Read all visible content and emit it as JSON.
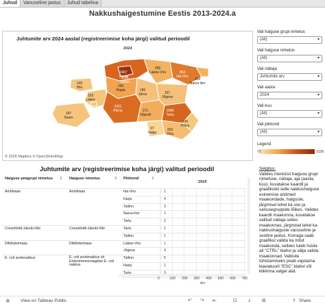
{
  "tabs": [
    "Juhud",
    "Vanuseline jaotus",
    "Juhud tabelina"
  ],
  "main_title": "Nakkushaigestumine Eestis 2013-2024.a",
  "map": {
    "title": "Juhtumite arv 2024 aastal (registreerimise koha järgi) valitud perioodil",
    "year": "2024",
    "credit": "© 2025 Mapbox  © OpenStreetMap",
    "regions": [
      {
        "name": "Harju",
        "value": "1667"
      },
      {
        "name": "Tallinn",
        "value": "3136"
      },
      {
        "name": "Lääne-Viru",
        "value": "265"
      },
      {
        "name": "Ida-Viru",
        "value": "864"
      },
      {
        "name": "Narva linn",
        "value": "339"
      },
      {
        "name": "Rapla",
        "value": "343"
      },
      {
        "name": "Hiiu",
        "value": "142"
      },
      {
        "name": "Lääne",
        "value": "153"
      },
      {
        "name": "Järva",
        "value": "166"
      },
      {
        "name": "Jõgeva",
        "value": "167"
      },
      {
        "name": "Pärnu",
        "value": "1031"
      },
      {
        "name": "Viljandi",
        "value": "271"
      },
      {
        "name": "Tartu",
        "value": "1084"
      },
      {
        "name": "Saare",
        "value": "187"
      },
      {
        "name": "Põlva",
        "value": "145"
      },
      {
        "name": "Valga",
        "value": "97"
      },
      {
        "name": "Võru",
        "value": "203"
      }
    ]
  },
  "filters": [
    {
      "label": "Vali haiguse grupi nimetus",
      "value": "(All)"
    },
    {
      "label": "Vali haiguse nimetus",
      "value": "(All)"
    },
    {
      "label": "Vali näitaja",
      "value": "Juhtumite arv"
    },
    {
      "label": "Vali aasta",
      "value": "2024"
    },
    {
      "label": "Vali kuu",
      "value": "(All)"
    },
    {
      "label": "Vali piirkond",
      "value": "(All)"
    }
  ],
  "legend": {
    "label": "Legend",
    "min": "70",
    "max": "3136"
  },
  "table": {
    "title": "Juhtumite arv (registreerimise koha järgi) valitud perioodil",
    "headers": {
      "group": "Haiguse peagrupi nimetus",
      "disease": "Haiguse nimetus",
      "region": "Piirkond",
      "year": "2024"
    },
    "rows": [
      {
        "group": "Amöbiaas",
        "disease": "Amöbiaas",
        "region": "Ida-Viru",
        "value": "1"
      },
      {
        "group": "",
        "disease": "",
        "region": "Harju",
        "value": "4"
      },
      {
        "group": "",
        "disease": "",
        "region": "Tallinn",
        "value": "3"
      },
      {
        "group": "",
        "disease": "",
        "region": "Narva linn",
        "value": "1"
      },
      {
        "group": "",
        "disease": "",
        "region": "Tartu",
        "value": "2"
      },
      {
        "group": "Creutzfeldt-Jakobi tõbi",
        "disease": "Creutzfeldt-Jakobi tõbi",
        "region": "Tartu",
        "value": "1"
      },
      {
        "group": "",
        "disease": "",
        "region": "Tallinn",
        "value": "1"
      },
      {
        "group": "Difüllobotriaas",
        "disease": "Difüllobotriaas",
        "region": "Lääne-Viru",
        "value": "1"
      },
      {
        "group": "",
        "disease": "",
        "region": "Jõgeva",
        "value": "4"
      },
      {
        "group": "E. coli soolenakkus",
        "disease": "E. coli soolenakkus sh Enterohemorraagilise E. coli nakkus",
        "region": "Tallinn",
        "value": "5"
      },
      {
        "group": "",
        "disease": "",
        "region": "Harju",
        "value": "1"
      },
      {
        "group": "",
        "disease": "",
        "region": "Tartu",
        "value": "3"
      }
    ],
    "axis_ticks": [
      "0",
      "100",
      "200",
      "300",
      "400",
      "500",
      "600",
      "700"
    ],
    "axis_label": "Arv"
  },
  "help": {
    "heading": "Selgitus:",
    "text": "Valides menüüst haiguse grupi nimetuse, näitaja, aja (aasta, kuu), kuvatakse kaardil ja graafikutel selle nakkushaiguse esinemise andmed maakondade, haiguste, järgmisel lehel ka soo ja vanusegruppide lõikes. Valides kaardil maakonna, kuvatakse valitud näitaja selles maakonnas, järgmisel lehel ka nakkushaiguste vanuseline ja sooline jaotus. Korraga saab graafikul valida ka mitut maakonda, selleks tuleb hoida all \"CTRL\" klahvi ja välja valida maakonnad. Valikute tühistamiseks peab vajutama klaviatuuril \"ESC\" klahvi või klikkima valgel alal."
  },
  "footer": {
    "view_label": "View on Tableau Public",
    "share_label": "Share"
  }
}
